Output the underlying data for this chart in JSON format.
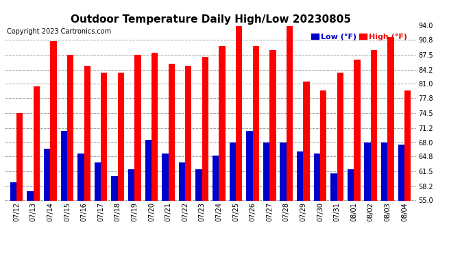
{
  "title": "Outdoor Temperature Daily High/Low 20230805",
  "copyright": "Copyright 2023 Cartronics.com",
  "legend_low": "Low",
  "legend_high": "High",
  "legend_unit": "(°F)",
  "dates": [
    "07/12",
    "07/13",
    "07/14",
    "07/15",
    "07/16",
    "07/17",
    "07/18",
    "07/19",
    "07/20",
    "07/21",
    "07/22",
    "07/23",
    "07/24",
    "07/25",
    "07/26",
    "07/27",
    "07/28",
    "07/29",
    "07/30",
    "07/31",
    "08/01",
    "08/02",
    "08/03",
    "08/04"
  ],
  "highs": [
    74.5,
    80.5,
    90.5,
    87.5,
    85.0,
    83.5,
    83.5,
    87.5,
    88.0,
    85.5,
    85.0,
    87.0,
    89.5,
    94.0,
    89.5,
    88.5,
    94.0,
    81.5,
    79.5,
    83.5,
    86.5,
    88.5,
    91.5,
    79.5
  ],
  "lows": [
    59.0,
    57.0,
    66.5,
    70.5,
    65.5,
    63.5,
    60.5,
    62.0,
    68.5,
    65.5,
    63.5,
    62.0,
    65.0,
    68.0,
    70.5,
    68.0,
    68.0,
    66.0,
    65.5,
    61.0,
    62.0,
    68.0,
    68.0,
    67.5
  ],
  "ylim": [
    55.0,
    94.0
  ],
  "yticks": [
    55.0,
    58.2,
    61.5,
    64.8,
    68.0,
    71.2,
    74.5,
    77.8,
    81.0,
    84.2,
    87.5,
    90.8,
    94.0
  ],
  "bar_color_high": "#ff0000",
  "bar_color_low": "#0000cc",
  "bg_color": "#ffffff",
  "grid_color": "#888888",
  "title_fontsize": 11,
  "copyright_fontsize": 7,
  "tick_fontsize": 7,
  "legend_fontsize": 8,
  "bar_width": 0.38
}
